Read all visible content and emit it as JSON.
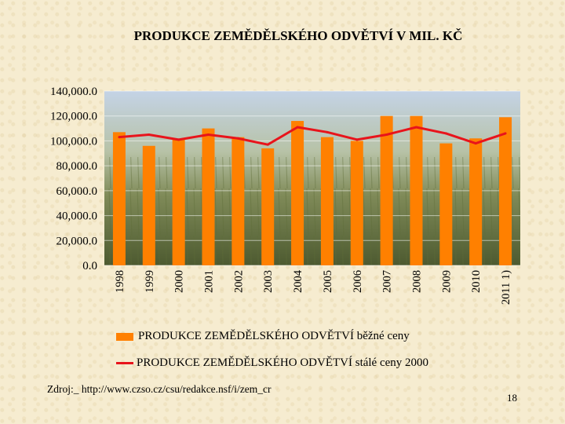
{
  "title": "PRODUKCE ZEMĚDĚLSKÉHO ODVĚTVÍ  V MIL. KČ",
  "source": "Zdroj:_ http://www.czso.cz/csu/redakce.nsf/i/zem_cr",
  "page_number": "18",
  "colors": {
    "bar": "#ff8000",
    "line": "#e8141b"
  },
  "chart_data": {
    "type": "bar",
    "categories": [
      "1998",
      "1999",
      "2000",
      "2001",
      "2002",
      "2003",
      "2004",
      "2005",
      "2006",
      "2007",
      "2008",
      "2009",
      "2010",
      "2011 1)"
    ],
    "ylim": [
      0,
      140000
    ],
    "yticks": [
      "0.0",
      "20,000.0",
      "40,000.0",
      "60,000.0",
      "80,000.0",
      "100,000.0",
      "120,000.0",
      "140,000.0"
    ],
    "series": [
      {
        "name": "PRODUKCE ZEMĚDĚLSKÉHO ODVĚTVÍ běžné ceny",
        "type": "bar",
        "values": [
          107000,
          96000,
          101000,
          110000,
          103000,
          94000,
          116000,
          103000,
          100000,
          120000,
          120000,
          98000,
          102000,
          119000
        ]
      },
      {
        "name": "PRODUKCE ZEMĚDĚLSKÉHO ODVĚTVÍ stálé ceny 2000",
        "type": "line",
        "values": [
          103000,
          105000,
          101000,
          105000,
          102000,
          97000,
          111000,
          107000,
          101000,
          105000,
          111000,
          106000,
          98000,
          106000
        ]
      }
    ],
    "grid": true,
    "legend_position": "bottom"
  }
}
